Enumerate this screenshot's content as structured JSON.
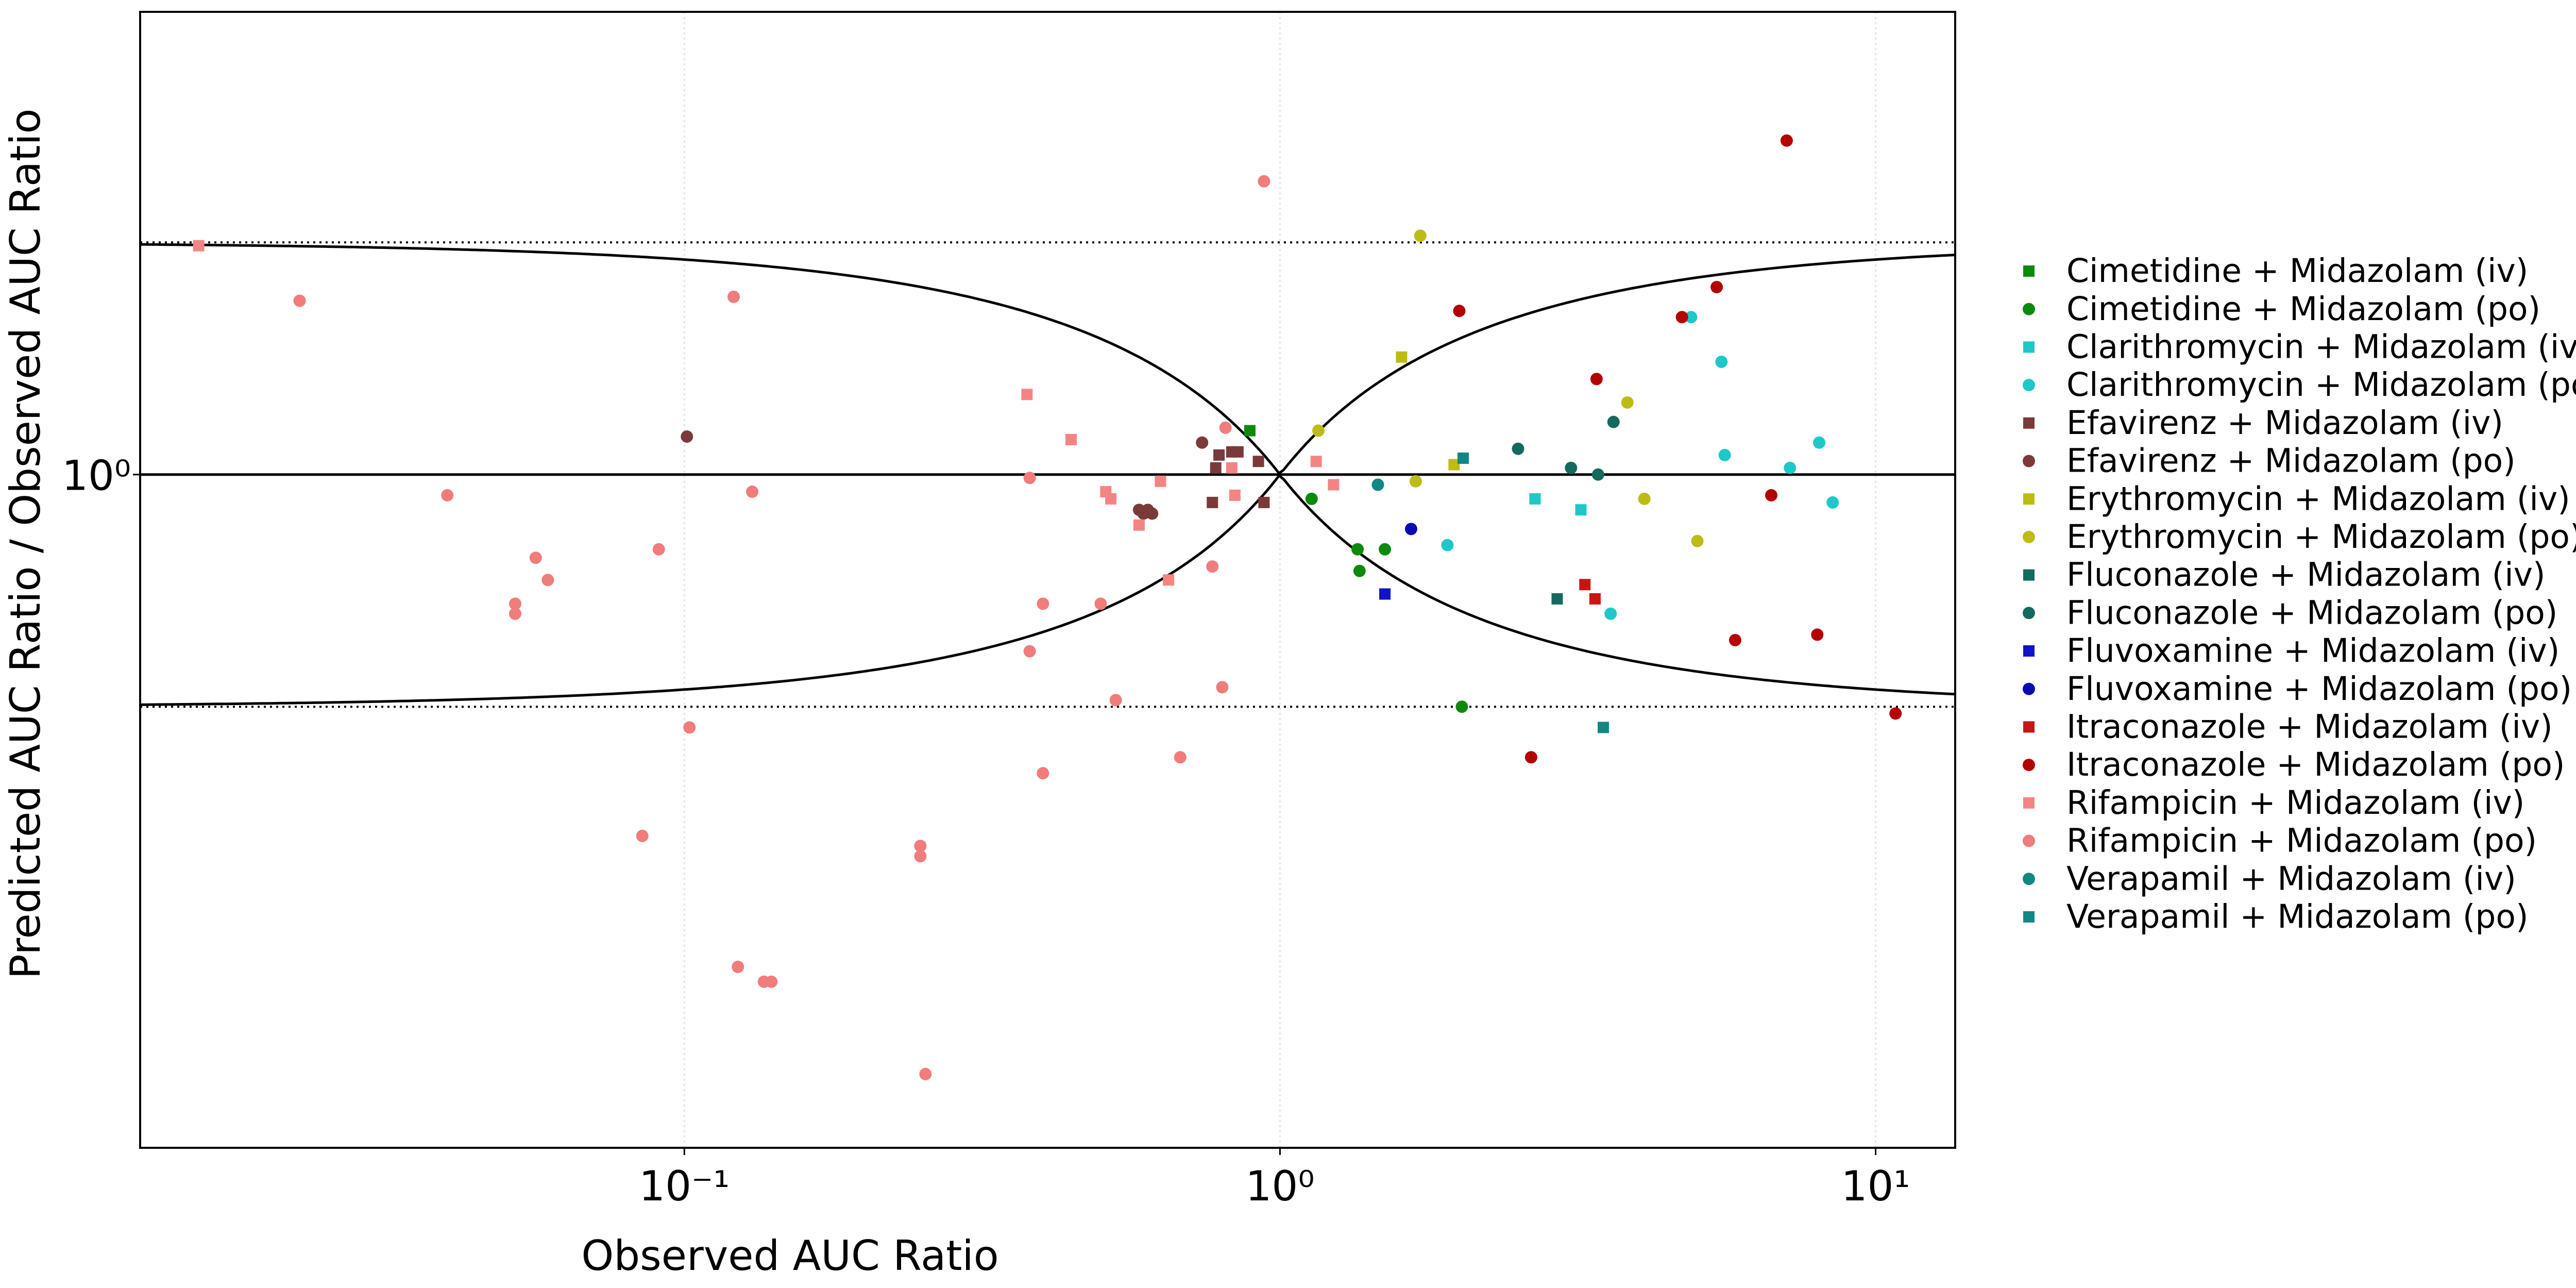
{
  "chart_data": {
    "type": "scatter",
    "x_label": "Observed AUC Ratio",
    "y_label": "Predicted AUC Ratio / Observed AUC Ratio",
    "xlog": true,
    "ylog": true,
    "grid": true,
    "legend": "right",
    "xlim": [
      0.0122,
      13.6
    ],
    "ylim": [
      0.134,
      3.98
    ],
    "xticks": [
      {
        "value": 0.1,
        "label": "10⁻¹"
      },
      {
        "value": 1,
        "label": "10⁰"
      },
      {
        "value": 10,
        "label": "10¹"
      }
    ],
    "yticks": [
      {
        "value": 1,
        "label": "10⁰"
      }
    ],
    "series": [
      {
        "name": "Cimetidine + Midazolam (iv)",
        "color": "#0d8a0d",
        "marker": "square",
        "x": [
          0.89
        ],
        "values": [
          1.14
        ]
      },
      {
        "name": "Cimetidine + Midazolam (po)",
        "color": "#0d8a0d",
        "marker": "circle",
        "x": [
          1.13,
          1.35,
          1.36,
          1.5,
          2.02
        ],
        "values": [
          0.93,
          0.8,
          0.75,
          0.8,
          0.5
        ]
      },
      {
        "name": "Clarithromycin + Midazolam (iv)",
        "color": "#1ec8c8",
        "marker": "square",
        "x": [
          2.68,
          3.2
        ],
        "values": [
          0.93,
          0.9
        ]
      },
      {
        "name": "Clarithromycin + Midazolam (po)",
        "color": "#1ec8c8",
        "marker": "circle",
        "x": [
          4.9,
          5.51,
          5.58,
          7.18,
          8.04,
          8.47,
          1.91,
          3.59
        ],
        "values": [
          1.6,
          1.4,
          1.06,
          1.02,
          1.1,
          0.92,
          0.81,
          0.66
        ]
      },
      {
        "name": "Efavirenz + Midazolam (iv)",
        "color": "#7b3a3a",
        "marker": "square",
        "x": [
          0.78,
          0.79,
          0.83,
          0.85,
          0.92,
          0.94,
          0.77
        ],
        "values": [
          1.02,
          1.06,
          1.07,
          1.07,
          1.04,
          0.92,
          0.92
        ]
      },
      {
        "name": "Efavirenz + Midazolam (po)",
        "color": "#7b3a3a",
        "marker": "circle",
        "x": [
          0.101,
          0.74,
          0.58,
          0.59,
          0.6,
          0.61
        ],
        "values": [
          1.12,
          1.1,
          0.9,
          0.89,
          0.9,
          0.89
        ]
      },
      {
        "name": "Erythromycin + Midazolam (iv)",
        "color": "#bcbc14",
        "marker": "square",
        "x": [
          1.6,
          1.96
        ],
        "values": [
          1.42,
          1.03
        ]
      },
      {
        "name": "Erythromycin + Midazolam (po)",
        "color": "#bcbc14",
        "marker": "circle",
        "x": [
          1.72,
          1.16,
          1.69,
          3.83,
          4.09,
          5.02
        ],
        "values": [
          2.04,
          1.14,
          0.98,
          1.24,
          0.93,
          0.82
        ]
      },
      {
        "name": "Fluconazole + Midazolam (iv)",
        "color": "#146a5e",
        "marker": "square",
        "x": [
          2.92
        ],
        "values": [
          0.69
        ]
      },
      {
        "name": "Fluconazole + Midazolam (po)",
        "color": "#146a5e",
        "marker": "circle",
        "x": [
          2.51,
          3.08,
          3.42,
          3.63
        ],
        "values": [
          1.08,
          1.02,
          1.0,
          1.17
        ]
      },
      {
        "name": "Fluvoxamine + Midazolam (iv)",
        "color": "#1212c8",
        "marker": "square",
        "x": [
          1.5
        ],
        "values": [
          0.7
        ]
      },
      {
        "name": "Fluvoxamine + Midazolam (po)",
        "color": "#0a0ab0",
        "marker": "circle",
        "x": [
          1.66
        ],
        "values": [
          0.85
        ]
      },
      {
        "name": "Itraconazole + Midazolam (iv)",
        "color": "#c81414",
        "marker": "square",
        "x": [
          3.25,
          3.38
        ],
        "values": [
          0.72,
          0.69
        ]
      },
      {
        "name": "Itraconazole + Midazolam (po)",
        "color": "#b40000",
        "marker": "circle",
        "x": [
          7.09,
          5.41,
          4.73,
          2.0,
          3.4,
          6.68,
          5.81,
          7.98,
          10.8,
          2.64
        ],
        "values": [
          2.71,
          1.75,
          1.6,
          1.63,
          1.33,
          0.94,
          0.61,
          0.62,
          0.49,
          0.43
        ]
      },
      {
        "name": "Rifampicin + Midazolam (iv)",
        "color": "#f48484",
        "marker": "square",
        "x": [
          0.0153,
          0.376,
          0.446,
          0.51,
          0.52,
          0.58,
          0.63,
          0.65,
          0.84,
          0.83,
          1.15,
          1.23
        ],
        "values": [
          1.98,
          1.27,
          1.11,
          0.95,
          0.93,
          0.86,
          0.98,
          0.73,
          0.94,
          1.02,
          1.04,
          0.97
        ]
      },
      {
        "name": "Rifampicin + Midazolam (po)",
        "color": "#f07c7c",
        "marker": "circle",
        "x": [
          0.94,
          0.0226,
          0.121,
          0.04,
          0.0906,
          0.13,
          0.0563,
          0.059,
          0.052,
          0.052,
          0.38,
          0.4,
          0.5,
          0.38,
          0.81,
          0.77,
          0.8,
          0.53,
          0.102,
          0.4,
          0.68,
          0.085,
          0.249,
          0.249,
          0.123,
          0.136,
          0.14,
          0.254
        ],
        "values": [
          2.4,
          1.68,
          1.7,
          0.94,
          0.8,
          0.95,
          0.78,
          0.73,
          0.68,
          0.66,
          0.99,
          0.68,
          0.68,
          0.59,
          1.15,
          0.76,
          0.53,
          0.51,
          0.47,
          0.41,
          0.43,
          0.34,
          0.33,
          0.32,
          0.23,
          0.22,
          0.22,
          0.167
        ]
      },
      {
        "name": "Verapamil + Midazolam (iv)",
        "color": "#128784",
        "marker": "circle",
        "x": [
          1.46
        ],
        "values": [
          0.97
        ]
      },
      {
        "name": "Verapamil + Midazolam (po)",
        "color": "#128784",
        "marker": "square",
        "x": [
          2.03,
          3.49
        ],
        "values": [
          1.05,
          0.47
        ]
      }
    ]
  }
}
